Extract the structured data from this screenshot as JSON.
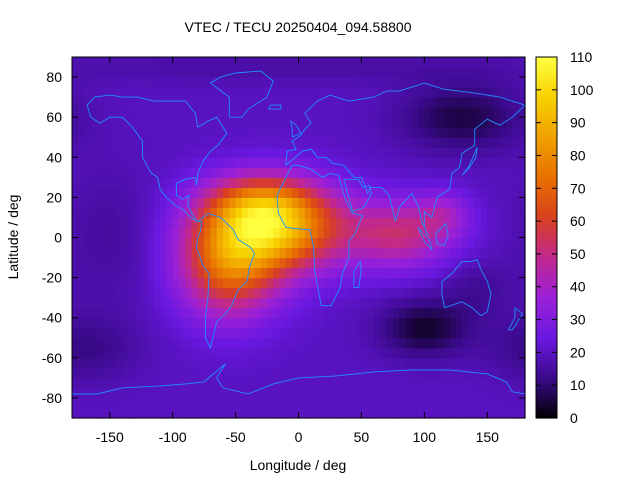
{
  "chart_data": {
    "type": "heatmap",
    "title": "VTEC / TECU 20250404_094.58800",
    "xlabel": "Longitude / deg",
    "ylabel": "Latitude / deg",
    "xlim": [
      -180,
      180
    ],
    "ylim": [
      -90,
      90
    ],
    "x_ticks": [
      -150,
      -100,
      -50,
      0,
      50,
      100,
      150
    ],
    "x_tick_labels": [
      "-150",
      "-100",
      "-50",
      "0",
      "50",
      "100",
      "150"
    ],
    "y_ticks": [
      -80,
      -60,
      -40,
      -20,
      0,
      20,
      40,
      60,
      80
    ],
    "y_tick_labels": [
      "-80",
      "-60",
      "-40",
      "-20",
      "0",
      "20",
      "40",
      "60",
      "80"
    ],
    "colorbar": {
      "min": 0,
      "max": 110,
      "ticks": [
        0,
        10,
        20,
        30,
        40,
        50,
        60,
        70,
        80,
        90,
        100,
        110
      ],
      "tick_labels": [
        "0",
        "10",
        "20",
        "30",
        "40",
        "50",
        "60",
        "70",
        "80",
        "90",
        "100",
        "110"
      ],
      "colormap": [
        "#000000",
        "#3a0a8a",
        "#6a18e0",
        "#9a20d8",
        "#c02890",
        "#d84020",
        "#e87000",
        "#f0a000",
        "#f8d000",
        "#ffff40"
      ]
    },
    "grid_resolution_deg": 5,
    "field": {
      "background_tecu": 20,
      "anomalies": [
        {
          "label": "equatorial anomaly peak",
          "lon": -20,
          "lat": 5,
          "sigma_lon": 38,
          "sigma_lat": 15,
          "tecu": 68
        },
        {
          "label": "south atlantic lobe",
          "lon": -55,
          "lat": -15,
          "sigma_lon": 28,
          "sigma_lat": 18,
          "tecu": 45
        },
        {
          "label": "northern crest",
          "lon": -30,
          "lat": 18,
          "sigma_lon": 30,
          "sigma_lat": 10,
          "tecu": 25
        },
        {
          "label": "indian ocean tail",
          "lon": 80,
          "lat": 2,
          "sigma_lon": 30,
          "sigma_lat": 12,
          "tecu": 30
        },
        {
          "label": "southeast asia tail",
          "lon": 115,
          "lat": 12,
          "sigma_lon": 15,
          "sigma_lat": 8,
          "tecu": 14
        },
        {
          "label": "western pacific low",
          "lon": -150,
          "lat": 0,
          "sigma_lon": 30,
          "sigma_lat": 25,
          "tecu": -5
        },
        {
          "label": "indian ocean trough",
          "lon": 100,
          "lat": -45,
          "sigma_lon": 25,
          "sigma_lat": 10,
          "tecu": -16
        },
        {
          "label": "siberia trough",
          "lon": 130,
          "lat": 60,
          "sigma_lon": 35,
          "sigma_lat": 12,
          "tecu": -14
        },
        {
          "label": "north polar low",
          "lon": 0,
          "lat": 85,
          "sigma_lon": 180,
          "sigma_lat": 6,
          "tecu": -4
        },
        {
          "label": "south pacific low",
          "lon": -170,
          "lat": -55,
          "sigma_lon": 30,
          "sigma_lat": 12,
          "tecu": -8
        },
        {
          "label": "australia low",
          "lon": 140,
          "lat": -25,
          "sigma_lon": 20,
          "sigma_lat": 10,
          "tecu": -6
        }
      ]
    },
    "overlay": "continent coastlines",
    "overlay_color": "#1e90ff"
  }
}
